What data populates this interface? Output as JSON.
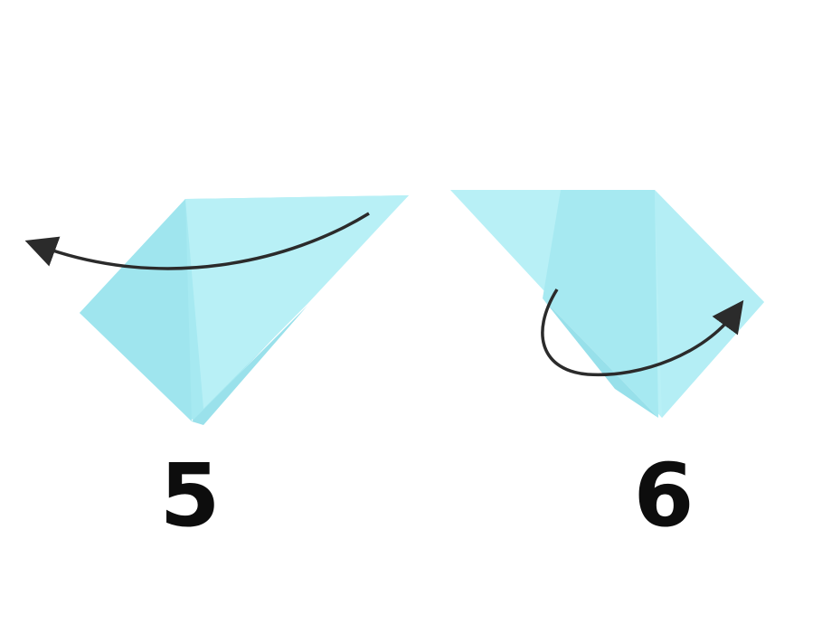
{
  "steps": [
    {
      "number": "5",
      "icon": "fold-arrow-left-icon"
    },
    {
      "number": "6",
      "icon": "fold-arrow-right-icon"
    }
  ],
  "colors": {
    "paper_light": "#b8f0f6",
    "paper_mid": "#a6e9f1",
    "paper_dark": "#8fdde8",
    "arrow": "#2b2b2b",
    "number": "#0d0d0d"
  }
}
